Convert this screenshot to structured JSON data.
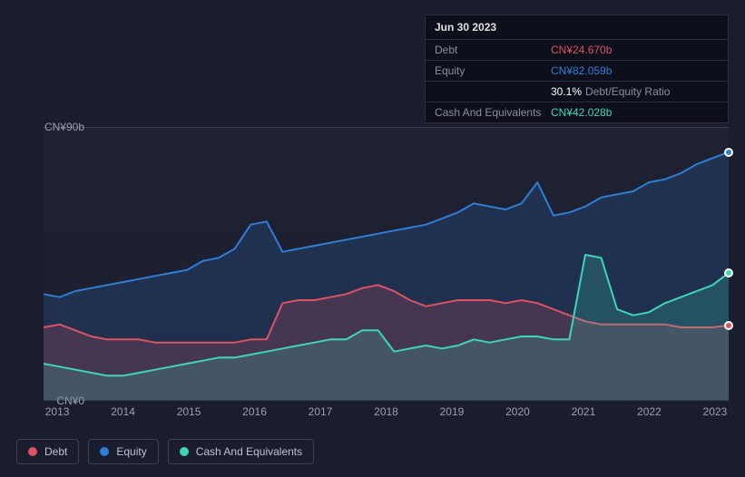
{
  "chart": {
    "type": "line-area",
    "background_color": "#1a1d2e",
    "plot_background": "rgba(35,38,54,0.5)",
    "grid_color": "#3a3f52",
    "text_color": "#9ca0ad",
    "y_axis": {
      "top_label": "CN¥90b",
      "bottom_label": "CN¥0",
      "min": 0,
      "max": 90
    },
    "x_axis": {
      "ticks": [
        "2013",
        "2014",
        "2015",
        "2016",
        "2017",
        "2018",
        "2019",
        "2020",
        "2021",
        "2022",
        "2023"
      ]
    },
    "series": [
      {
        "name": "Equity",
        "color": "#2f7ed8",
        "fill_opacity": 0.18,
        "line_width": 2,
        "values": [
          35,
          34,
          36,
          37,
          38,
          39,
          40,
          41,
          42,
          43,
          46,
          47,
          50,
          58,
          59,
          49,
          50,
          51,
          52,
          53,
          54,
          55,
          56,
          57,
          58,
          60,
          62,
          65,
          64,
          63,
          65,
          72,
          61,
          62,
          64,
          67,
          68,
          69,
          72,
          73,
          75,
          78,
          80,
          82
        ]
      },
      {
        "name": "Debt",
        "color": "#e05263",
        "fill_opacity": 0.2,
        "line_width": 2,
        "values": [
          24,
          25,
          23,
          21,
          20,
          20,
          20,
          19,
          19,
          19,
          19,
          19,
          19,
          20,
          20,
          32,
          33,
          33,
          34,
          35,
          37,
          38,
          36,
          33,
          31,
          32,
          33,
          33,
          33,
          32,
          33,
          32,
          30,
          28,
          26,
          25,
          25,
          25,
          25,
          25,
          24,
          24,
          24,
          24.67
        ]
      },
      {
        "name": "Cash And Equivalents",
        "color": "#3fd6b8",
        "fill_opacity": 0.2,
        "line_width": 2,
        "values": [
          12,
          11,
          10,
          9,
          8,
          8,
          9,
          10,
          11,
          12,
          13,
          14,
          14,
          15,
          16,
          17,
          18,
          19,
          20,
          20,
          23,
          23,
          16,
          17,
          18,
          17,
          18,
          20,
          19,
          20,
          21,
          21,
          20,
          20,
          48,
          47,
          30,
          28,
          29,
          32,
          34,
          36,
          38,
          42.03
        ]
      }
    ],
    "end_markers": true
  },
  "tooltip": {
    "date": "Jun 30 2023",
    "rows": [
      {
        "label": "Debt",
        "value": "CN¥24.670b",
        "color": "#e05263"
      },
      {
        "label": "Equity",
        "value": "CN¥82.059b",
        "color": "#2f7ed8"
      },
      {
        "label": "",
        "value": "30.1%",
        "extra": "Debt/Equity Ratio",
        "color": "#ffffff"
      },
      {
        "label": "Cash And Equivalents",
        "value": "CN¥42.028b",
        "color": "#3fd6b8"
      }
    ]
  },
  "legend": {
    "items": [
      {
        "label": "Debt",
        "color": "#e05263"
      },
      {
        "label": "Equity",
        "color": "#2f7ed8"
      },
      {
        "label": "Cash And Equivalents",
        "color": "#3fd6b8"
      }
    ]
  }
}
